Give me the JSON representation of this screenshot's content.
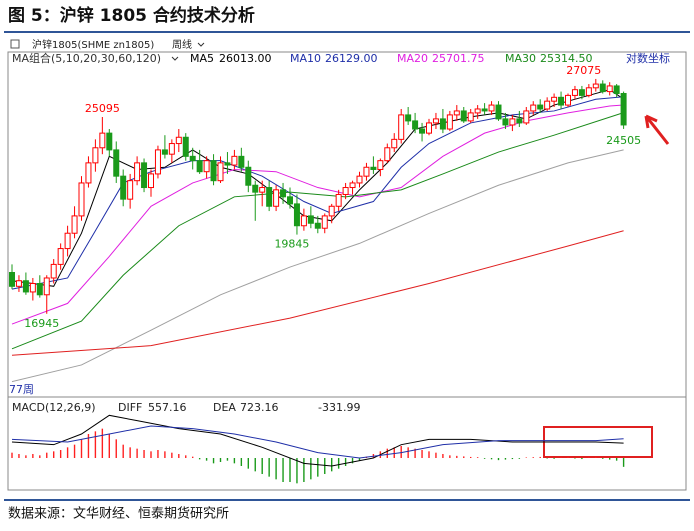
{
  "header": {
    "title": "图 5：沪锌 1805 合约技术分析"
  },
  "toolbar": {
    "symbol": "沪锌1805(SHME zn1805)",
    "period": "周线"
  },
  "chart_data": [
    {
      "type": "candlestick",
      "legend_title": "MA组合(5,10,20,30,60,120)",
      "scale_label": "对数坐标",
      "period_label": "77周",
      "log": true,
      "ylim": [
        14700,
        28400
      ],
      "up_color": "#ff0000",
      "down_color": "#1a9a1a",
      "candles": [
        [
          18400,
          18700,
          17800,
          17900
        ],
        [
          17900,
          18300,
          17700,
          18100
        ],
        [
          18100,
          18400,
          17600,
          17700
        ],
        [
          17700,
          18200,
          17400,
          18000
        ],
        [
          18000,
          18300,
          17500,
          17600
        ],
        [
          17600,
          18300,
          16945,
          18200
        ],
        [
          18200,
          18900,
          18000,
          18700
        ],
        [
          18700,
          19500,
          18500,
          19300
        ],
        [
          19300,
          20200,
          19000,
          19900
        ],
        [
          19900,
          21000,
          19700,
          20600
        ],
        [
          20600,
          22300,
          20400,
          22000
        ],
        [
          22000,
          23200,
          21800,
          22900
        ],
        [
          22900,
          24000,
          22500,
          23600
        ],
        [
          23600,
          25095,
          23300,
          24300
        ],
        [
          24300,
          24500,
          23200,
          23500
        ],
        [
          23500,
          23900,
          22000,
          22300
        ],
        [
          22300,
          22600,
          21000,
          21300
        ],
        [
          21300,
          22400,
          20900,
          22100
        ],
        [
          22100,
          23200,
          21900,
          22900
        ],
        [
          22900,
          23100,
          21600,
          21800
        ],
        [
          21800,
          22600,
          21400,
          22400
        ],
        [
          22400,
          23700,
          22200,
          23500
        ],
        [
          23500,
          24200,
          23100,
          23300
        ],
        [
          23300,
          24000,
          22900,
          23800
        ],
        [
          23800,
          24500,
          23400,
          24100
        ],
        [
          24100,
          24300,
          23000,
          23200
        ],
        [
          23200,
          23600,
          22600,
          23000
        ],
        [
          23000,
          23500,
          22400,
          22500
        ],
        [
          22500,
          23200,
          22200,
          23000
        ],
        [
          23000,
          23300,
          21900,
          22100
        ],
        [
          22100,
          23200,
          22000,
          22900
        ],
        [
          22900,
          23400,
          22400,
          22800
        ],
        [
          22800,
          23500,
          22600,
          23200
        ],
        [
          23200,
          23600,
          22500,
          22700
        ],
        [
          22700,
          23000,
          21600,
          21900
        ],
        [
          21900,
          22100,
          20400,
          21600
        ],
        [
          21600,
          22100,
          21000,
          21800
        ],
        [
          21800,
          22100,
          20800,
          21000
        ],
        [
          21000,
          21900,
          20800,
          21700
        ],
        [
          21700,
          22000,
          21100,
          21400
        ],
        [
          21400,
          21800,
          20900,
          21100
        ],
        [
          21100,
          21500,
          19845,
          20200
        ],
        [
          20200,
          20900,
          20000,
          20600
        ],
        [
          20600,
          21000,
          20100,
          20300
        ],
        [
          20300,
          20600,
          19900,
          20100
        ],
        [
          20100,
          20700,
          19900,
          20600
        ],
        [
          20600,
          21100,
          20300,
          21000
        ],
        [
          21000,
          21700,
          20800,
          21500
        ],
        [
          21500,
          22000,
          21300,
          21800
        ],
        [
          21800,
          22100,
          21500,
          22000
        ],
        [
          22000,
          22500,
          21800,
          22300
        ],
        [
          22300,
          22900,
          22100,
          22700
        ],
        [
          22700,
          23200,
          22400,
          22600
        ],
        [
          22600,
          23100,
          22300,
          23000
        ],
        [
          23000,
          23800,
          22900,
          23600
        ],
        [
          23600,
          24300,
          23400,
          24000
        ],
        [
          24000,
          25500,
          23800,
          25200
        ],
        [
          25200,
          25600,
          24700,
          24900
        ],
        [
          24900,
          25300,
          24300,
          24500
        ],
        [
          24500,
          24800,
          23900,
          24300
        ],
        [
          24300,
          25000,
          24200,
          24800
        ],
        [
          24800,
          25300,
          24500,
          25000
        ],
        [
          25000,
          25500,
          24300,
          24500
        ],
        [
          24500,
          25400,
          24400,
          25200
        ],
        [
          25200,
          25700,
          24900,
          25400
        ],
        [
          25400,
          25600,
          24800,
          24900
        ],
        [
          24900,
          25500,
          24800,
          25300
        ],
        [
          25300,
          25700,
          25000,
          25500
        ],
        [
          25500,
          25800,
          25200,
          25400
        ],
        [
          25400,
          25900,
          25200,
          25700
        ],
        [
          25700,
          25900,
          24900,
          25000
        ],
        [
          25000,
          25300,
          24500,
          24700
        ],
        [
          24700,
          25200,
          24400,
          25000
        ],
        [
          25000,
          25400,
          24600,
          24800
        ],
        [
          24800,
          25600,
          24700,
          25400
        ],
        [
          25400,
          25900,
          25200,
          25700
        ],
        [
          25700,
          26000,
          25300,
          25500
        ],
        [
          25500,
          26100,
          25400,
          25900
        ],
        [
          25900,
          26300,
          25600,
          26100
        ],
        [
          26100,
          26400,
          25500,
          25700
        ],
        [
          25700,
          26300,
          25600,
          26200
        ],
        [
          26200,
          26700,
          26000,
          26500
        ],
        [
          26500,
          26700,
          26000,
          26200
        ],
        [
          26200,
          26800,
          26100,
          26600
        ],
        [
          26600,
          27075,
          26400,
          26800
        ],
        [
          26800,
          27000,
          26300,
          26400
        ],
        [
          26400,
          26900,
          26200,
          26700
        ],
        [
          26700,
          26800,
          26100,
          26300
        ],
        [
          26300,
          26400,
          24505,
          24700
        ]
      ],
      "ma": [
        {
          "name": "MA5",
          "color": "#000000",
          "legend_label": "26013.00",
          "x": [
            0,
            6,
            10,
            14,
            18,
            22,
            26,
            30,
            34,
            38,
            42,
            46,
            50,
            54,
            58,
            62,
            66,
            70,
            74,
            78,
            82,
            86,
            88
          ],
          "values": [
            18100,
            17900,
            19900,
            23200,
            22600,
            22700,
            23500,
            22700,
            22400,
            21500,
            20600,
            20400,
            21700,
            22900,
            24500,
            24800,
            25100,
            25300,
            25000,
            25700,
            26100,
            26500,
            26013
          ]
        },
        {
          "name": "MA10",
          "color": "#1f2fa8",
          "legend_label": "26129.00",
          "x": [
            0,
            8,
            12,
            16,
            20,
            26,
            30,
            36,
            42,
            46,
            52,
            56,
            60,
            66,
            72,
            78,
            84,
            88
          ],
          "values": [
            17800,
            18200,
            20000,
            22000,
            22500,
            23000,
            23000,
            22300,
            21200,
            20700,
            21200,
            22700,
            23800,
            24800,
            25200,
            25400,
            26000,
            26129
          ]
        },
        {
          "name": "MA20",
          "color": "#e020e0",
          "legend_label": "25701.75",
          "x": [
            0,
            8,
            14,
            20,
            26,
            32,
            38,
            44,
            50,
            56,
            62,
            68,
            74,
            80,
            86,
            88
          ],
          "values": [
            16600,
            17300,
            19000,
            21000,
            22000,
            22600,
            22500,
            21800,
            21400,
            21800,
            23200,
            24300,
            24900,
            25300,
            25650,
            25701.75
          ]
        },
        {
          "name": "MA30",
          "color": "#1a8a1a",
          "legend_label": "25314.50",
          "x": [
            0,
            10,
            16,
            24,
            32,
            40,
            48,
            56,
            62,
            70,
            78,
            88
          ],
          "values": [
            15800,
            16700,
            18300,
            20200,
            21400,
            21600,
            21400,
            21700,
            22400,
            23400,
            24200,
            25314.5
          ]
        },
        {
          "name": "MA60",
          "color": "#a0a0a0",
          "x": [
            0,
            10,
            20,
            30,
            40,
            50,
            60,
            70,
            80,
            88
          ],
          "values": [
            14800,
            15300,
            16400,
            17600,
            18600,
            19500,
            20700,
            21900,
            22900,
            23500
          ]
        },
        {
          "name": "MA120",
          "color": "#e02020",
          "x": [
            0,
            20,
            40,
            60,
            80,
            88
          ],
          "values": [
            15600,
            15900,
            16800,
            18000,
            19400,
            20000
          ]
        }
      ]
    },
    {
      "type": "macd",
      "title": "MACD(12,26,9)",
      "ylim": [
        -1200,
        1800
      ],
      "series": [
        {
          "name": "DIFF",
          "color": "#000000",
          "x": [
            0,
            6,
            10,
            14,
            18,
            24,
            30,
            36,
            42,
            46,
            52,
            56,
            60,
            66,
            72,
            78,
            84,
            88
          ],
          "values": [
            600,
            500,
            900,
            1600,
            1400,
            1100,
            900,
            400,
            -200,
            -300,
            0,
            500,
            700,
            700,
            600,
            600,
            600,
            557.16
          ]
        },
        {
          "name": "DEA",
          "color": "#1f2fa8",
          "x": [
            0,
            8,
            14,
            20,
            26,
            32,
            38,
            44,
            50,
            56,
            62,
            70,
            78,
            84,
            88
          ],
          "values": [
            700,
            600,
            900,
            1200,
            1100,
            900,
            600,
            200,
            0,
            200,
            500,
            650,
            650,
            650,
            723.16
          ]
        }
      ],
      "histogram": {
        "up_color": "#ff2020",
        "down_color": "#1a9a1a",
        "values": [
          200,
          150,
          100,
          150,
          100,
          200,
          250,
          300,
          400,
          500,
          700,
          900,
          1000,
          1100,
          900,
          700,
          500,
          400,
          350,
          300,
          250,
          300,
          250,
          200,
          150,
          100,
          50,
          -50,
          -100,
          -200,
          -150,
          -100,
          -200,
          -300,
          -400,
          -500,
          -600,
          -700,
          -800,
          -900,
          -900,
          -950,
          -900,
          -800,
          -700,
          -600,
          -500,
          -400,
          -300,
          -200,
          -100,
          50,
          150,
          250,
          350,
          400,
          450,
          400,
          350,
          300,
          250,
          200,
          150,
          100,
          80,
          60,
          40,
          30,
          -30,
          -50,
          -80,
          -60,
          -40,
          -30,
          20,
          30,
          40,
          -20,
          -30,
          20,
          30,
          -20,
          -40,
          20,
          30,
          -30,
          -60,
          -100,
          -331.99
        ]
      }
    }
  ],
  "footer": {
    "source": "数据来源：文华财经、恒泰期货研究所"
  }
}
